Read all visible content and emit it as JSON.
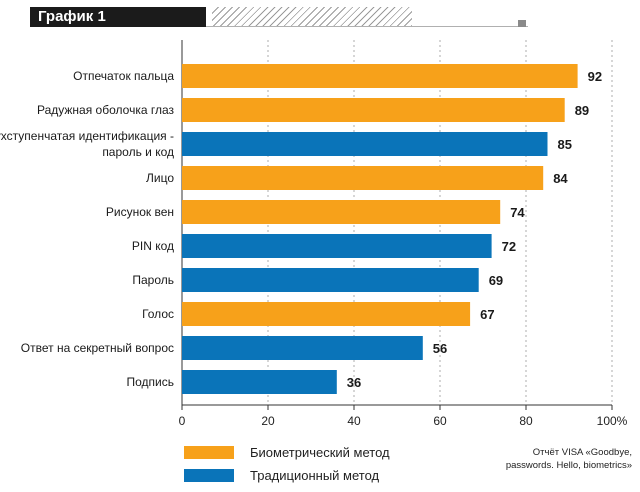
{
  "header": {
    "title": "График 1"
  },
  "chart_data": {
    "type": "bar",
    "orientation": "horizontal",
    "categories": [
      "Отпечаток пальца",
      "Радужная оболочка глаз",
      "Двухступенчатая идентификация -\nпароль и код",
      "Лицо",
      "Рисунок вен",
      "PIN код",
      "Пароль",
      "Голос",
      "Ответ на секретный вопрос",
      "Подпись"
    ],
    "values": [
      92,
      89,
      85,
      84,
      74,
      72,
      69,
      67,
      56,
      36
    ],
    "value_labels": [
      "92",
      "89",
      "85",
      "84",
      "74",
      "72",
      "69",
      "67",
      "56",
      "36"
    ],
    "groups": [
      "Биометрический метод",
      "Биометрический метод",
      "Традиционный метод",
      "Биометрический метод",
      "Биометрический метод",
      "Традиционный метод",
      "Традиционный метод",
      "Биометрический метод",
      "Традиционный метод",
      "Традиционный метод"
    ],
    "xlim": [
      0,
      100
    ],
    "xticks": [
      "0",
      "20",
      "40",
      "60",
      "80",
      "100%"
    ],
    "grid": "vertical",
    "legend": [
      {
        "name": "Биометрический метод",
        "color": "#f7a11a"
      },
      {
        "name": "Традиционный метод",
        "color": "#0a74b9"
      }
    ],
    "legend_placement": "bottom-left"
  },
  "source_note": "Отчёт VISA «Goodbye, passwords. Hello, biometrics»"
}
